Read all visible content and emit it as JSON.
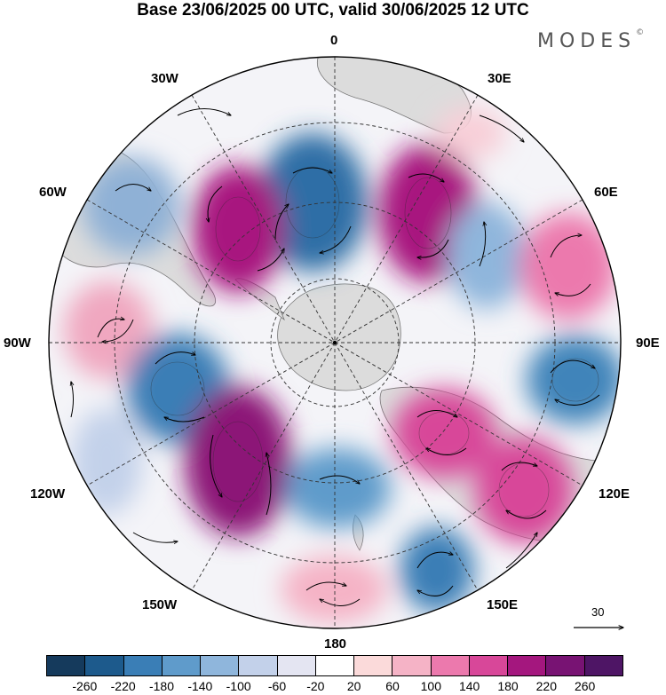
{
  "title": "Base 23/06/2025 00 UTC, valid 30/06/2025 12 UTC",
  "brand": "MODES",
  "brand_mark": "©",
  "longitude_labels": {
    "top": "0",
    "top_left": "30W",
    "top_right": "30E",
    "upper_left": "60W",
    "upper_right": "60E",
    "left": "90W",
    "right": "90E",
    "lower_left": "120W",
    "lower_right": "120E",
    "bottom_left": "150W",
    "bottom_right": "150E",
    "bottom": "180"
  },
  "vector_scale_label": "30",
  "colorbar": {
    "ticks": [
      "-260",
      "-220",
      "-180",
      "-140",
      "-100",
      "-60",
      "-20",
      "20",
      "60",
      "100",
      "140",
      "180",
      "220",
      "260"
    ],
    "colors": [
      "#153a5c",
      "#1d5a8c",
      "#3a7eb6",
      "#5f9bcb",
      "#8fb6dc",
      "#c3d1ea",
      "#e4e5f2",
      "#ffffff",
      "#fbdada",
      "#f5b3c6",
      "#ec79ad",
      "#d84799",
      "#a4177e",
      "#781373",
      "#4e1565"
    ]
  },
  "map": {
    "projection": "south-polar-stereographic",
    "land_color": "#d7d7d7",
    "anomaly_centers": [
      {
        "name": "center-1",
        "value": -240
      },
      {
        "name": "center-2",
        "value": 250
      },
      {
        "name": "center-3",
        "value": 250
      },
      {
        "name": "center-4",
        "value": -160
      },
      {
        "name": "center-5",
        "value": -160
      },
      {
        "name": "center-6",
        "value": 150
      },
      {
        "name": "center-7",
        "value": 150
      },
      {
        "name": "center-8",
        "value": -180
      },
      {
        "name": "center-9",
        "value": -150
      },
      {
        "name": "center-10",
        "value": 260
      },
      {
        "name": "center-11",
        "value": -130
      },
      {
        "name": "center-12",
        "value": 200
      },
      {
        "name": "center-13",
        "value": 200
      },
      {
        "name": "center-14",
        "value": -170
      },
      {
        "name": "center-15",
        "value": 90
      }
    ]
  }
}
